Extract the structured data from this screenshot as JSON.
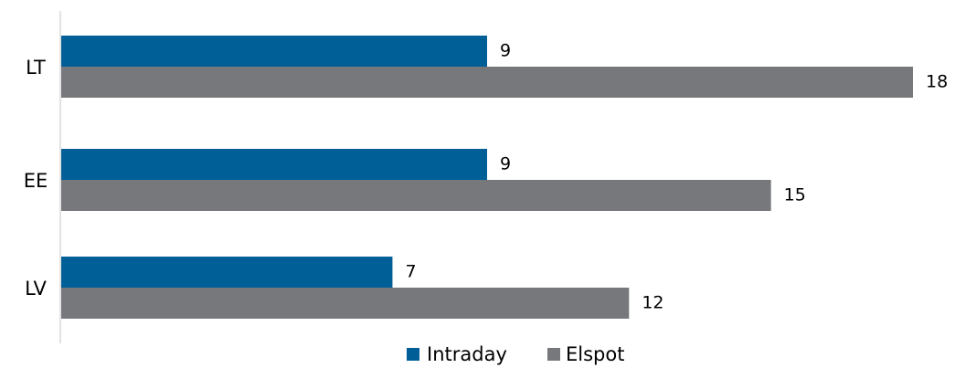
{
  "chart_data": {
    "type": "bar",
    "orientation": "horizontal",
    "categories": [
      "LT",
      "EE",
      "LV"
    ],
    "series": [
      {
        "name": "Intraday",
        "values": [
          9,
          9,
          7
        ],
        "color": "#005f96"
      },
      {
        "name": "Elspot",
        "values": [
          18,
          15,
          12
        ],
        "color": "#77787b"
      }
    ],
    "title": "",
    "xlabel": "",
    "ylabel": "",
    "xlim": [
      0,
      18
    ],
    "grid": false,
    "legend_position": "bottom",
    "data_labels": true
  }
}
